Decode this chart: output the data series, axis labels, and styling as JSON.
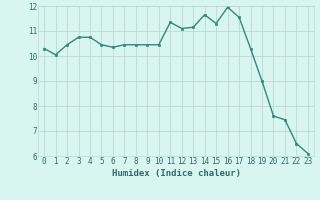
{
  "x": [
    0,
    1,
    2,
    3,
    4,
    5,
    6,
    7,
    8,
    9,
    10,
    11,
    12,
    13,
    14,
    15,
    16,
    17,
    18,
    19,
    20,
    21,
    22,
    23
  ],
  "y": [
    10.3,
    10.05,
    10.45,
    10.75,
    10.75,
    10.45,
    10.35,
    10.45,
    10.45,
    10.45,
    10.45,
    11.35,
    11.1,
    11.15,
    11.65,
    11.3,
    11.95,
    11.55,
    10.3,
    9.0,
    7.6,
    7.45,
    6.5,
    6.1
  ],
  "line_color": "#2e8b7a",
  "marker": "s",
  "markersize": 2.0,
  "linewidth": 1.0,
  "bg_color": "#d8f5f0",
  "grid_color": "#c0d8d4",
  "xlabel": "Humidex (Indice chaleur)",
  "xlabel_fontsize": 6.5,
  "tick_fontsize": 5.5,
  "ylim": [
    6,
    12
  ],
  "xlim": [
    -0.5,
    23.5
  ],
  "yticks": [
    6,
    7,
    8,
    9,
    10,
    11,
    12
  ],
  "xticks": [
    0,
    1,
    2,
    3,
    4,
    5,
    6,
    7,
    8,
    9,
    10,
    11,
    12,
    13,
    14,
    15,
    16,
    17,
    18,
    19,
    20,
    21,
    22,
    23
  ],
  "tick_color": "#2e6b6b",
  "label_color": "#2e6b6b"
}
